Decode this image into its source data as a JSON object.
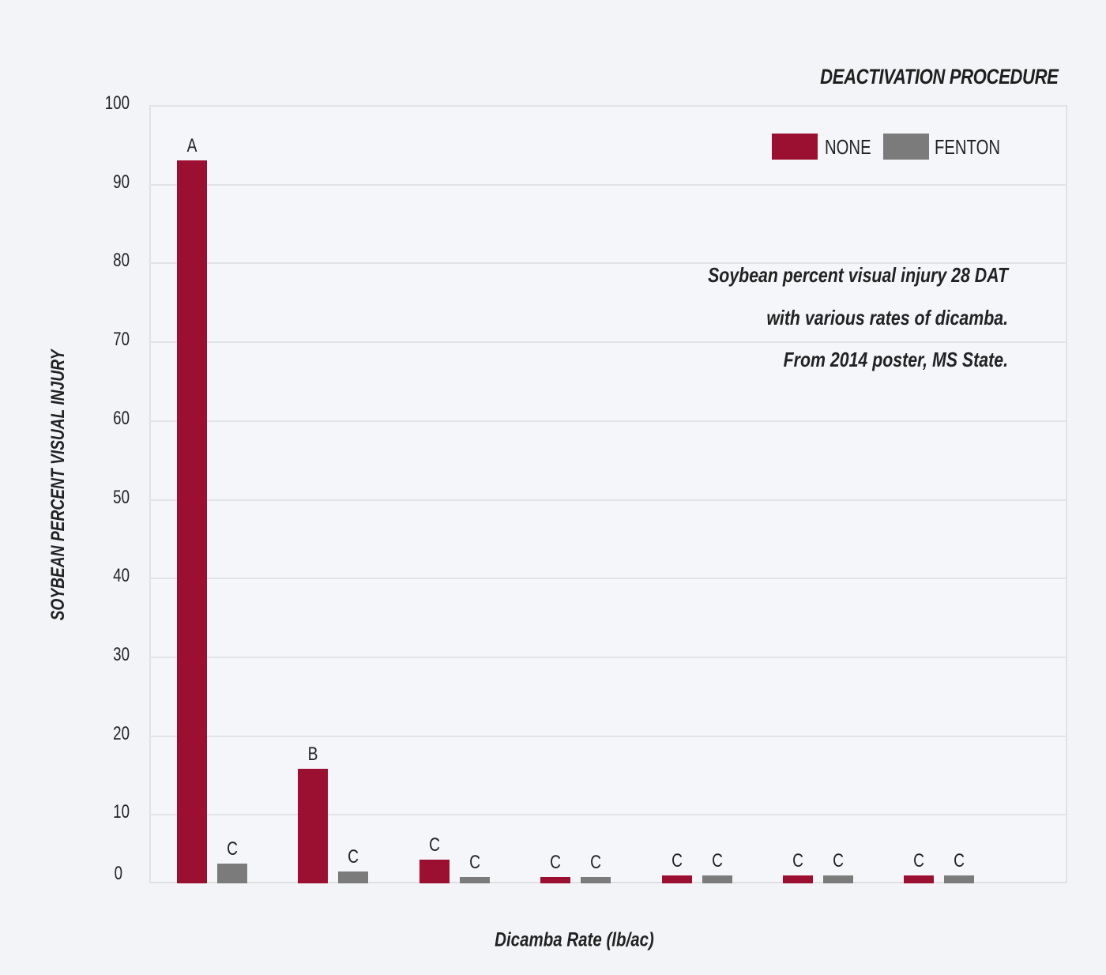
{
  "chart_data": {
    "type": "bar",
    "title": "DEACTIVATION PROCEDURE",
    "subtitle": "Soybean percent visual injury 28 DAT with various rates of dicamba. From 2014 poster, MS State.",
    "xlabel": "Dicamba Rate (lb/ac)",
    "ylabel": "SOYBEAN PERCENT VISUAL INJURY",
    "ylim": [
      0,
      100
    ],
    "yticks": [
      0,
      10,
      20,
      30,
      40,
      50,
      60,
      70,
      80,
      90,
      100
    ],
    "grid": true,
    "legend_position": "top-right",
    "categories": [
      "",
      "",
      "",
      "",
      "",
      "",
      ""
    ],
    "series": [
      {
        "name": "NONE",
        "color": "#9b1030",
        "values": [
          93,
          15.7,
          4.2,
          1.9,
          2.2,
          2.2,
          2.2
        ],
        "letters": [
          "A",
          "B",
          "C",
          "C",
          "C",
          "C",
          "C"
        ]
      },
      {
        "name": "FENTON",
        "color": "#7b7b7b",
        "values": [
          3.7,
          2.7,
          1.9,
          1.9,
          2.2,
          2.2,
          2.2
        ],
        "letters": [
          "C",
          "C",
          "C",
          "C",
          "C",
          "C",
          "C"
        ]
      }
    ]
  },
  "text": {
    "title": "DEACTIVATION PROCEDURE",
    "note_lines": [
      "Soybean percent visual injury 28 DAT",
      "with various rates of dicamba.",
      "From 2014 poster, MS State."
    ],
    "xlabel": "Dicamba Rate (lb/ac)",
    "ylabel": "SOYBEAN PERCENT VISUAL INJURY",
    "legend": [
      {
        "label": "NONE",
        "color": "#9b1030"
      },
      {
        "label": "FENTON",
        "color": "#7b7b7b"
      }
    ]
  },
  "colors": {
    "background": "#f3f4f8",
    "plot_background": "#f5f6fa",
    "grid": "#e3e3e6",
    "none_series": "#9b1030",
    "fenton_series": "#7b7b7b",
    "text": "#222222"
  }
}
